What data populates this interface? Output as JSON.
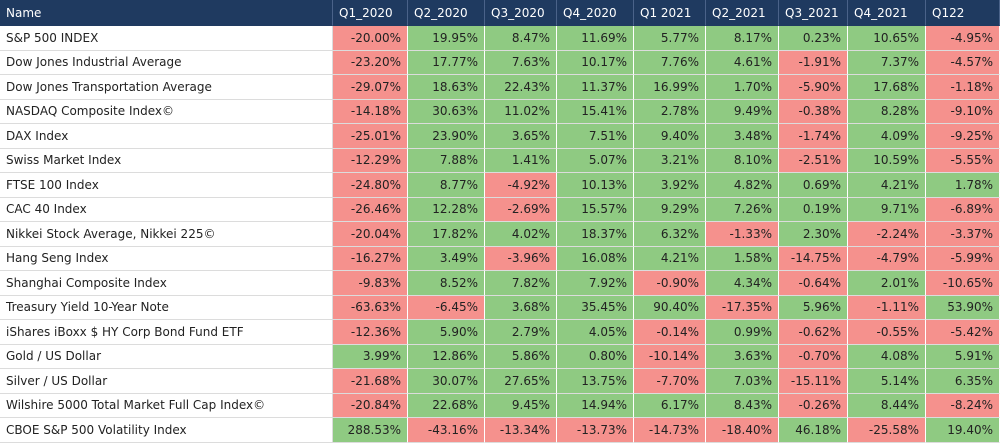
{
  "table": {
    "columns": [
      "Name",
      "Q1_2020",
      "Q2_2020",
      "Q3_2020",
      "Q4_2020",
      "Q1 2021",
      "Q2_2021",
      "Q3_2021",
      "Q4_2021",
      "Q122"
    ],
    "rows": [
      [
        "S&P 500 INDEX",
        "-20.00%",
        "19.95%",
        "8.47%",
        "11.69%",
        "5.77%",
        "8.17%",
        "0.23%",
        "10.65%",
        "-4.95%"
      ],
      [
        "Dow Jones Industrial Average",
        "-23.20%",
        "17.77%",
        "7.63%",
        "10.17%",
        "7.76%",
        "4.61%",
        "-1.91%",
        "7.37%",
        "-4.57%"
      ],
      [
        "Dow Jones Transportation Average",
        "-29.07%",
        "18.63%",
        "22.43%",
        "11.37%",
        "16.99%",
        "1.70%",
        "-5.90%",
        "17.68%",
        "-1.18%"
      ],
      [
        "NASDAQ Composite Index©",
        "-14.18%",
        "30.63%",
        "11.02%",
        "15.41%",
        "2.78%",
        "9.49%",
        "-0.38%",
        "8.28%",
        "-9.10%"
      ],
      [
        "DAX Index",
        "-25.01%",
        "23.90%",
        "3.65%",
        "7.51%",
        "9.40%",
        "3.48%",
        "-1.74%",
        "4.09%",
        "-9.25%"
      ],
      [
        "Swiss Market Index",
        "-12.29%",
        "7.88%",
        "1.41%",
        "5.07%",
        "3.21%",
        "8.10%",
        "-2.51%",
        "10.59%",
        "-5.55%"
      ],
      [
        "FTSE 100 Index",
        "-24.80%",
        "8.77%",
        "-4.92%",
        "10.13%",
        "3.92%",
        "4.82%",
        "0.69%",
        "4.21%",
        "1.78%"
      ],
      [
        "CAC 40 Index",
        "-26.46%",
        "12.28%",
        "-2.69%",
        "15.57%",
        "9.29%",
        "7.26%",
        "0.19%",
        "9.71%",
        "-6.89%"
      ],
      [
        "Nikkei Stock Average, Nikkei 225©",
        "-20.04%",
        "17.82%",
        "4.02%",
        "18.37%",
        "6.32%",
        "-1.33%",
        "2.30%",
        "-2.24%",
        "-3.37%"
      ],
      [
        "Hang Seng Index",
        "-16.27%",
        "3.49%",
        "-3.96%",
        "16.08%",
        "4.21%",
        "1.58%",
        "-14.75%",
        "-4.79%",
        "-5.99%"
      ],
      [
        "Shanghai Composite Index",
        "-9.83%",
        "8.52%",
        "7.82%",
        "7.92%",
        "-0.90%",
        "4.34%",
        "-0.64%",
        "2.01%",
        "-10.65%"
      ],
      [
        "Treasury Yield 10-Year Note",
        "-63.63%",
        "-6.45%",
        "3.68%",
        "35.45%",
        "90.40%",
        "-17.35%",
        "5.96%",
        "-1.11%",
        "53.90%"
      ],
      [
        "iShares iBoxx $ HY Corp Bond Fund ETF",
        "-12.36%",
        "5.90%",
        "2.79%",
        "4.05%",
        "-0.14%",
        "0.99%",
        "-0.62%",
        "-0.55%",
        "-5.42%"
      ],
      [
        "Gold / US Dollar",
        "3.99%",
        "12.86%",
        "5.86%",
        "0.80%",
        "-10.14%",
        "3.63%",
        "-0.70%",
        "4.08%",
        "5.91%"
      ],
      [
        "Silver / US Dollar",
        "-21.68%",
        "30.07%",
        "27.65%",
        "13.75%",
        "-7.70%",
        "7.03%",
        "-15.11%",
        "5.14%",
        "6.35%"
      ],
      [
        "Wilshire 5000 Total Market Full Cap Index©",
        "-20.84%",
        "22.68%",
        "9.45%",
        "14.94%",
        "6.17%",
        "8.43%",
        "-0.26%",
        "8.44%",
        "-8.24%"
      ],
      [
        "CBOE S&P 500 Volatility Index",
        "288.53%",
        "-43.16%",
        "-13.34%",
        "-13.73%",
        "-14.73%",
        "-18.40%",
        "46.18%",
        "-25.58%",
        "19.40%"
      ]
    ]
  }
}
